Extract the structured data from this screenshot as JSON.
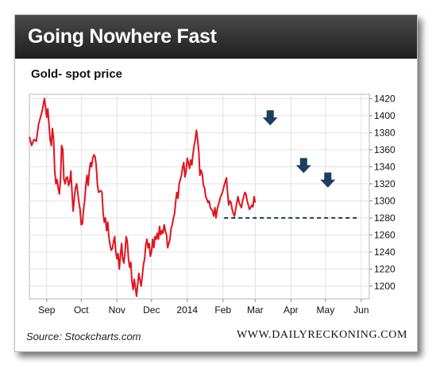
{
  "header": {
    "title": "Going Nowhere Fast"
  },
  "footer": {
    "source": "Source: Stockcharts.com",
    "brand": "WWW.DAILYRECKONING.COM"
  },
  "colors": {
    "line": "#e0141e",
    "support": "#1c3a5c",
    "arrow": "#1c3f60",
    "header": "#2d2d2d"
  },
  "icons": {
    "marker": "down-arrow-icon"
  },
  "chart_data": {
    "type": "line",
    "title": "Gold- spot price",
    "xlabel": "",
    "ylabel": "",
    "ylim": [
      1185,
      1425
    ],
    "grid": true,
    "y_axis_side": "right",
    "yticks": [
      1200,
      1220,
      1240,
      1260,
      1280,
      1300,
      1320,
      1340,
      1360,
      1380,
      1400,
      1420
    ],
    "xticks": [
      {
        "label": "Sep",
        "x": 5
      },
      {
        "label": "Oct",
        "x": 35
      },
      {
        "label": "Nov",
        "x": 66
      },
      {
        "label": "Dec",
        "x": 96
      },
      {
        "label": "2014",
        "x": 127
      },
      {
        "label": "Feb",
        "x": 158
      },
      {
        "label": "Mar",
        "x": 186
      },
      {
        "label": "Apr",
        "x": 217
      },
      {
        "label": "May",
        "x": 247
      },
      {
        "label": "Jun",
        "x": 278
      }
    ],
    "xlim": [
      -10,
      285
    ],
    "support_level": {
      "y": 1280,
      "x_start": 159,
      "x_end": 275
    },
    "markers": [
      {
        "x": 199,
        "y": 1383
      },
      {
        "x": 228,
        "y": 1327
      },
      {
        "x": 249,
        "y": 1310
      }
    ],
    "series": [
      {
        "values": [
          [
            -10,
            1375
          ],
          [
            -8,
            1365
          ],
          [
            -6,
            1372
          ],
          [
            -4,
            1370
          ],
          [
            -2,
            1390
          ],
          [
            0,
            1400
          ],
          [
            1,
            1405
          ],
          [
            3,
            1420
          ],
          [
            4,
            1410
          ],
          [
            5,
            1398
          ],
          [
            6,
            1408
          ],
          [
            7,
            1390
          ],
          [
            8,
            1372
          ],
          [
            9,
            1365
          ],
          [
            10,
            1385
          ],
          [
            11,
            1372
          ],
          [
            12,
            1335
          ],
          [
            13,
            1320
          ],
          [
            14,
            1325
          ],
          [
            15,
            1315
          ],
          [
            16,
            1308
          ],
          [
            17,
            1325
          ],
          [
            18,
            1365
          ],
          [
            19,
            1360
          ],
          [
            20,
            1325
          ],
          [
            21,
            1320
          ],
          [
            22,
            1327
          ],
          [
            23,
            1328
          ],
          [
            24,
            1318
          ],
          [
            25,
            1322
          ],
          [
            26,
            1335
          ],
          [
            27,
            1310
          ],
          [
            28,
            1288
          ],
          [
            29,
            1303
          ],
          [
            30,
            1315
          ],
          [
            31,
            1320
          ],
          [
            32,
            1310
          ],
          [
            33,
            1298
          ],
          [
            34,
            1290
          ],
          [
            35,
            1272
          ],
          [
            36,
            1273
          ],
          [
            37,
            1290
          ],
          [
            38,
            1300
          ],
          [
            39,
            1318
          ],
          [
            40,
            1330
          ],
          [
            41,
            1318
          ],
          [
            42,
            1335
          ],
          [
            43,
            1345
          ],
          [
            44,
            1340
          ],
          [
            45,
            1350
          ],
          [
            46,
            1354
          ],
          [
            47,
            1352
          ],
          [
            48,
            1342
          ],
          [
            49,
            1320
          ],
          [
            50,
            1310
          ],
          [
            52,
            1312
          ],
          [
            53,
            1310
          ],
          [
            54,
            1285
          ],
          [
            55,
            1275
          ],
          [
            56,
            1280
          ],
          [
            57,
            1265
          ],
          [
            58,
            1275
          ],
          [
            59,
            1258
          ],
          [
            60,
            1248
          ],
          [
            61,
            1242
          ],
          [
            62,
            1244
          ],
          [
            63,
            1252
          ],
          [
            64,
            1258
          ],
          [
            65,
            1240
          ],
          [
            66,
            1232
          ],
          [
            67,
            1238
          ],
          [
            68,
            1220
          ],
          [
            69,
            1235
          ],
          [
            70,
            1250
          ],
          [
            71,
            1232
          ],
          [
            72,
            1227
          ],
          [
            73,
            1240
          ],
          [
            74,
            1258
          ],
          [
            75,
            1252
          ],
          [
            76,
            1232
          ],
          [
            77,
            1222
          ],
          [
            78,
            1228
          ],
          [
            79,
            1206
          ],
          [
            80,
            1196
          ],
          [
            81,
            1208
          ],
          [
            82,
            1198
          ],
          [
            83,
            1188
          ],
          [
            84,
            1202
          ],
          [
            85,
            1215
          ],
          [
            86,
            1207
          ],
          [
            87,
            1200
          ],
          [
            88,
            1212
          ],
          [
            89,
            1225
          ],
          [
            90,
            1232
          ],
          [
            91,
            1248
          ],
          [
            92,
            1255
          ],
          [
            93,
            1245
          ],
          [
            94,
            1250
          ],
          [
            95,
            1235
          ],
          [
            96,
            1240
          ],
          [
            97,
            1255
          ],
          [
            98,
            1245
          ],
          [
            99,
            1258
          ],
          [
            100,
            1255
          ],
          [
            101,
            1262
          ],
          [
            102,
            1255
          ],
          [
            103,
            1270
          ],
          [
            104,
            1260
          ],
          [
            105,
            1265
          ],
          [
            106,
            1262
          ],
          [
            107,
            1272
          ],
          [
            108,
            1265
          ],
          [
            109,
            1260
          ],
          [
            110,
            1245
          ],
          [
            111,
            1250
          ],
          [
            112,
            1255
          ],
          [
            113,
            1268
          ],
          [
            114,
            1272
          ],
          [
            115,
            1280
          ],
          [
            116,
            1285
          ],
          [
            117,
            1300
          ],
          [
            118,
            1310
          ],
          [
            119,
            1303
          ],
          [
            120,
            1320
          ],
          [
            121,
            1325
          ],
          [
            122,
            1330
          ],
          [
            123,
            1340
          ],
          [
            124,
            1345
          ],
          [
            125,
            1328
          ],
          [
            126,
            1335
          ],
          [
            127,
            1350
          ],
          [
            128,
            1345
          ],
          [
            129,
            1338
          ],
          [
            130,
            1348
          ],
          [
            131,
            1342
          ],
          [
            132,
            1355
          ],
          [
            133,
            1365
          ],
          [
            134,
            1372
          ],
          [
            135,
            1383
          ],
          [
            136,
            1372
          ],
          [
            137,
            1358
          ],
          [
            138,
            1330
          ],
          [
            139,
            1336
          ],
          [
            140,
            1332
          ],
          [
            141,
            1318
          ],
          [
            142,
            1316
          ],
          [
            143,
            1305
          ],
          [
            144,
            1302
          ],
          [
            145,
            1298
          ],
          [
            146,
            1300
          ],
          [
            147,
            1292
          ],
          [
            148,
            1290
          ],
          [
            149,
            1288
          ],
          [
            150,
            1282
          ],
          [
            151,
            1292
          ],
          [
            152,
            1280
          ],
          [
            153,
            1290
          ],
          [
            154,
            1295
          ],
          [
            155,
            1300
          ],
          [
            156,
            1305
          ],
          [
            157,
            1308
          ],
          [
            158,
            1312
          ],
          [
            159,
            1318
          ],
          [
            160,
            1322
          ],
          [
            161,
            1327
          ],
          [
            162,
            1310
          ],
          [
            163,
            1295
          ],
          [
            164,
            1300
          ],
          [
            165,
            1298
          ],
          [
            166,
            1290
          ],
          [
            167,
            1285
          ],
          [
            168,
            1282
          ],
          [
            169,
            1290
          ],
          [
            170,
            1298
          ],
          [
            171,
            1305
          ],
          [
            172,
            1298
          ],
          [
            173,
            1295
          ],
          [
            174,
            1292
          ],
          [
            175,
            1300
          ],
          [
            176,
            1305
          ],
          [
            177,
            1310
          ],
          [
            178,
            1308
          ],
          [
            179,
            1300
          ],
          [
            180,
            1295
          ],
          [
            181,
            1290
          ],
          [
            182,
            1292
          ],
          [
            183,
            1295
          ],
          [
            184,
            1293
          ],
          [
            185,
            1305
          ],
          [
            186,
            1298
          ]
        ]
      }
    ]
  }
}
